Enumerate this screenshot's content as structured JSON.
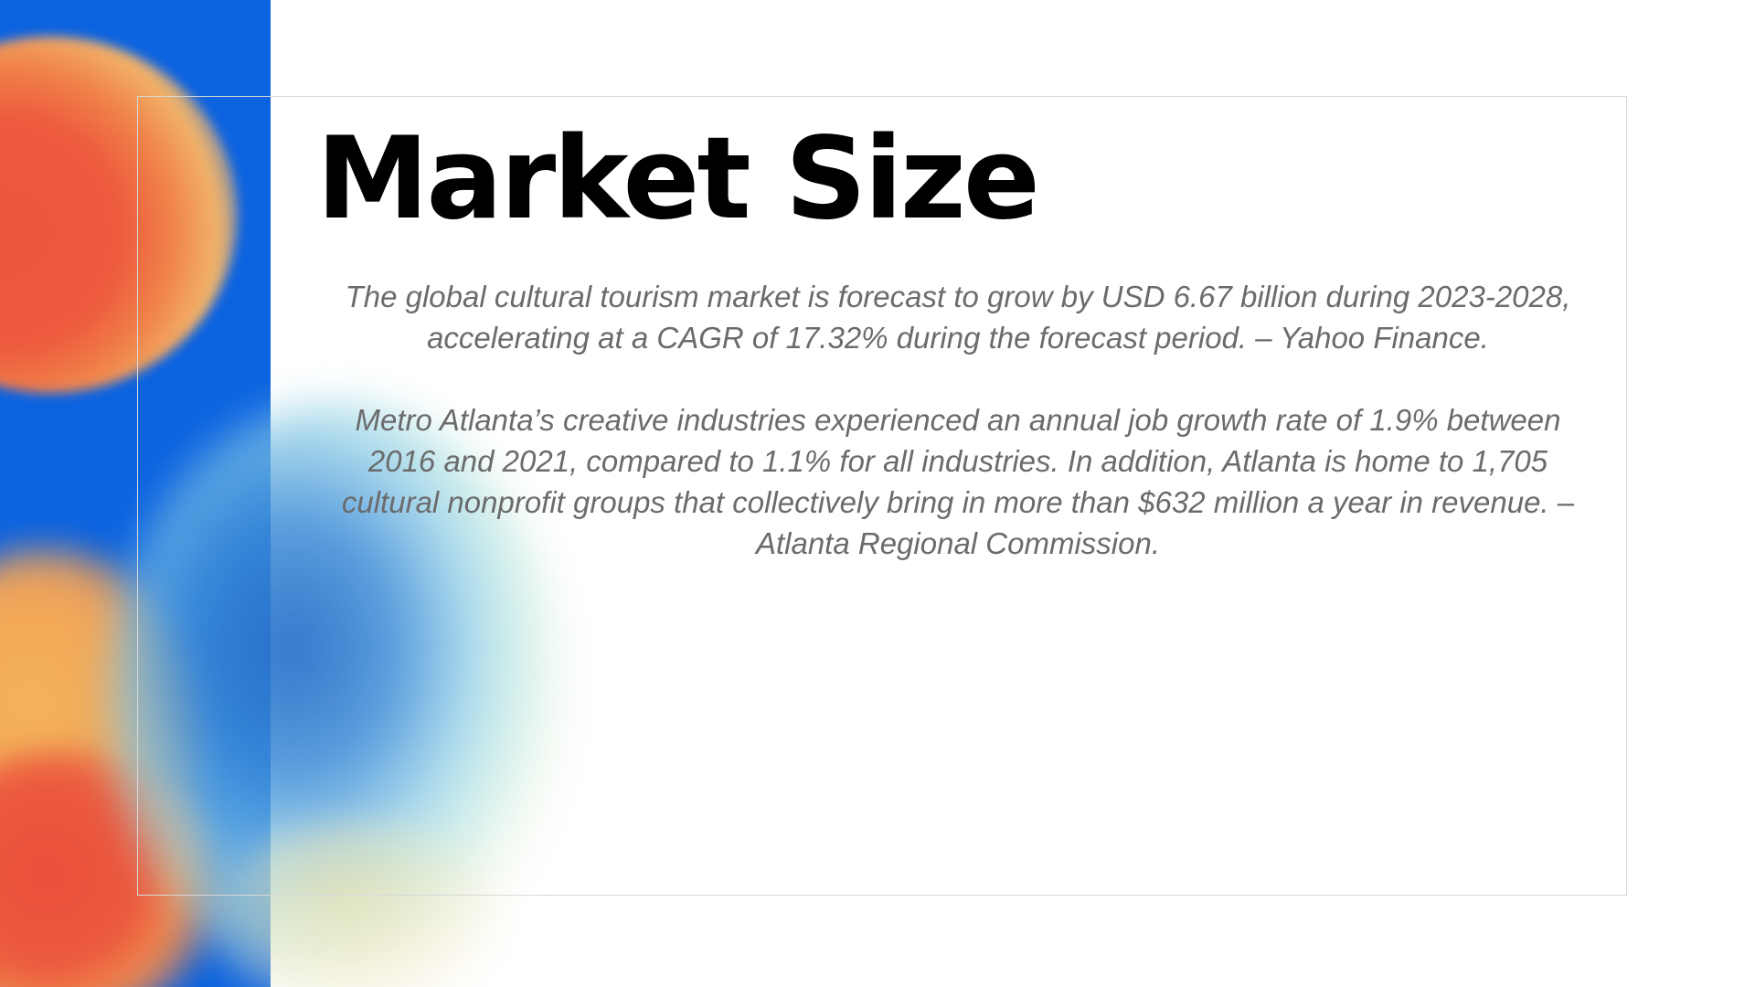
{
  "slide": {
    "title": "Market Size",
    "paragraphs": [
      "The global cultural tourism market is forecast to grow by USD 6.67 billion during 2023-2028, accelerating at a CAGR of 17.32% during the forecast period. – Yahoo Finance.",
      "Metro Atlanta’s creative industries experienced an annual job growth rate of 1.9% between 2016 and 2021, compared to 1.1% for all industries. In addition, Atlanta is home to 1,705 cultural nonprofit groups that collectively bring in more than $632 million a year in revenue. – Atlanta Regional Commission."
    ]
  },
  "colors": {
    "panel_blue": "#0c63e0",
    "accent_orange": "#ec553d",
    "accent_yellow": "#f4b45a",
    "title": "#000000",
    "body_text": "#6b6b6b",
    "frame_border": "#d9d9d9"
  }
}
